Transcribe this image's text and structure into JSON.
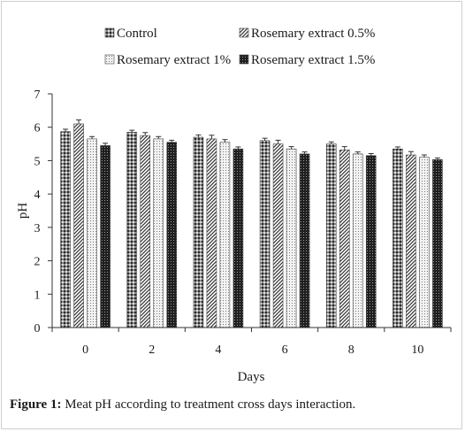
{
  "chart_data": {
    "type": "bar",
    "title": "",
    "xlabel": "Days",
    "ylabel": "pH",
    "categories": [
      "0",
      "2",
      "4",
      "6",
      "8",
      "10"
    ],
    "ylim": [
      0,
      7
    ],
    "yticks": [
      "0",
      "1",
      "2",
      "3",
      "4",
      "5",
      "6",
      "7"
    ],
    "grid": false,
    "legend_position": "top",
    "error_bars": true,
    "series": [
      {
        "name": "Control",
        "pattern": "dotted-grid",
        "color": "#555555",
        "values": [
          5.87,
          5.85,
          5.7,
          5.6,
          5.5,
          5.35
        ],
        "errors": [
          0.07,
          0.06,
          0.07,
          0.07,
          0.06,
          0.06
        ]
      },
      {
        "name": "Rosemary extract 0.5%",
        "pattern": "diagonal-hatch",
        "color": "#555555",
        "values": [
          6.1,
          5.75,
          5.65,
          5.5,
          5.32,
          5.17
        ],
        "errors": [
          0.12,
          0.09,
          0.11,
          0.11,
          0.1,
          0.1
        ]
      },
      {
        "name": "Rosemary extract 1%",
        "pattern": "light-dots",
        "color": "#888888",
        "values": [
          5.65,
          5.65,
          5.55,
          5.35,
          5.2,
          5.1
        ],
        "errors": [
          0.07,
          0.07,
          0.08,
          0.07,
          0.06,
          0.07
        ]
      },
      {
        "name": "Rosemary extract 1.5%",
        "pattern": "dark-crosshatch",
        "color": "#222222",
        "values": [
          5.45,
          5.55,
          5.35,
          5.2,
          5.15,
          5.03
        ],
        "errors": [
          0.07,
          0.06,
          0.06,
          0.06,
          0.06,
          0.05
        ]
      }
    ]
  },
  "caption": {
    "label": "Figure 1:",
    "text": "Meat pH according to treatment cross days interaction."
  }
}
